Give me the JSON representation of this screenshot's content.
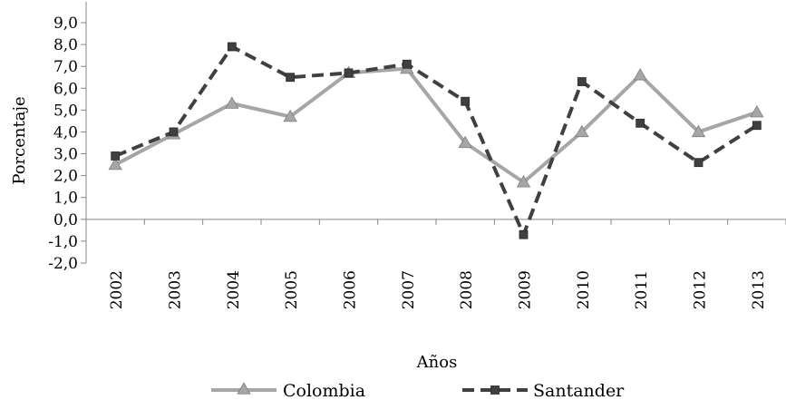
{
  "chart_data": {
    "type": "line",
    "title": "",
    "xlabel": "Años",
    "ylabel": "Porcentaje",
    "categories": [
      "2002",
      "2003",
      "2004",
      "2005",
      "2006",
      "2007",
      "2008",
      "2009",
      "2010",
      "2011",
      "2012",
      "2013"
    ],
    "y_ticks": [
      "-2,0",
      "-1,0",
      "0,0",
      "1,0",
      "2,0",
      "3,0",
      "4,0",
      "5,0",
      "6,0",
      "7,0",
      "8,0",
      "9,0"
    ],
    "ylim": [
      -2,
      9
    ],
    "grid": false,
    "legend": "bottom",
    "series": [
      {
        "name": "Colombia",
        "color": "#a6a6a6",
        "style": "solid",
        "marker": "triangle",
        "values": [
          2.5,
          3.9,
          5.3,
          4.7,
          6.7,
          6.9,
          3.5,
          1.7,
          4.0,
          6.6,
          4.0,
          4.9
        ]
      },
      {
        "name": "Santander",
        "color": "#404040",
        "style": "dashed",
        "marker": "square",
        "values": [
          2.9,
          4.0,
          7.9,
          6.5,
          6.7,
          7.1,
          5.4,
          -0.7,
          6.3,
          4.4,
          2.6,
          4.3
        ]
      }
    ]
  }
}
